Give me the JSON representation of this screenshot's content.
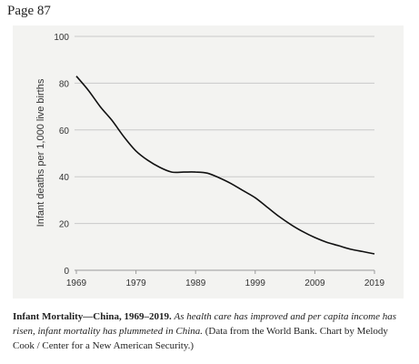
{
  "page_label": "Page 87",
  "caption": {
    "title": "Infant Mortality—China, 1969–2019.",
    "italic_text": "As health care has improved and per capita income has risen, infant mortality has plummeted in China.",
    "source": "(Data from the World Bank. Chart by Melody Cook / Center for a New American Security.)"
  },
  "chart_data": {
    "type": "line",
    "title": "",
    "xlabel": "",
    "ylabel": "Infant deaths per 1,000 live births",
    "xlim": [
      1969,
      2019
    ],
    "ylim": [
      0,
      100
    ],
    "xticks": [
      1969,
      1979,
      1989,
      1999,
      2009,
      2019
    ],
    "yticks": [
      0,
      20,
      40,
      60,
      80,
      100
    ],
    "grid": "horizontal",
    "line_color": "#111111",
    "series": [
      {
        "x": [
          1969,
          1971,
          1973,
          1975,
          1977,
          1979,
          1981,
          1983,
          1985,
          1987,
          1989,
          1991,
          1993,
          1995,
          1997,
          1999,
          2001,
          2003,
          2005,
          2007,
          2009,
          2011,
          2013,
          2015,
          2017,
          2019
        ],
        "values": [
          83,
          77,
          70,
          64,
          57,
          51,
          47,
          44,
          42,
          42,
          42,
          41.5,
          39.5,
          37,
          34,
          31,
          27,
          23,
          19.5,
          16.5,
          14,
          12,
          10.5,
          9,
          8,
          7
        ]
      }
    ]
  }
}
